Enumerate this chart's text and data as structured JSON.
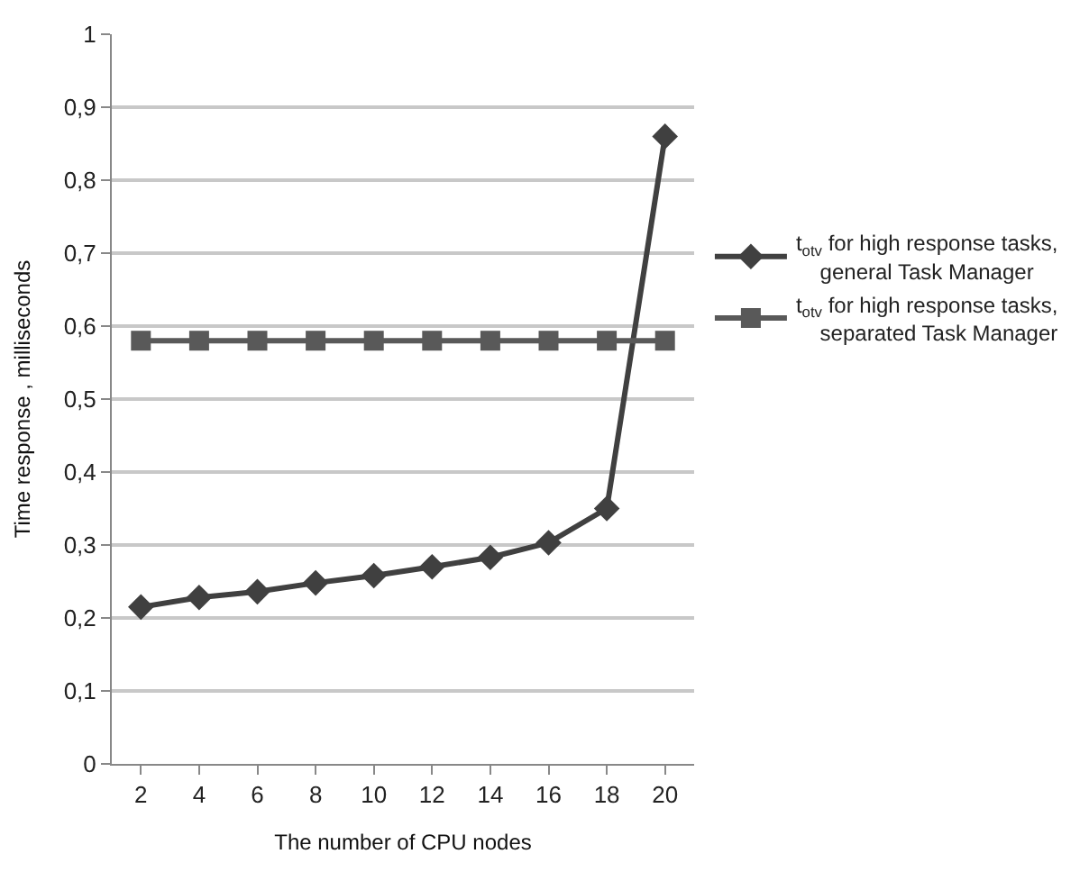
{
  "chart_data": {
    "type": "line",
    "xlabel": "The number of CPU nodes",
    "ylabel": "Time response , milliseconds",
    "categories": [
      "2",
      "4",
      "6",
      "8",
      "10",
      "12",
      "14",
      "16",
      "18",
      "20"
    ],
    "series": [
      {
        "name": "t$_{otv}$ for high response tasks, general Task Manager",
        "color": "#404040",
        "marker": "diamond",
        "values": [
          0.215,
          0.228,
          0.236,
          0.248,
          0.258,
          0.27,
          0.283,
          0.303,
          0.35,
          0.86
        ]
      },
      {
        "name": "t$_{otv}$ for high response tasks, separated Task Manager",
        "color": "#595959",
        "marker": "square",
        "values": [
          0.58,
          0.58,
          0.58,
          0.58,
          0.58,
          0.58,
          0.58,
          0.58,
          0.58,
          0.58
        ]
      }
    ],
    "ylim": [
      0,
      1
    ],
    "yticks": [
      0,
      {
        "value": 0.1,
        "label": "0,1"
      },
      {
        "value": 0.2,
        "label": "0,2"
      },
      {
        "value": 0.3,
        "label": "0,3"
      },
      {
        "value": 0.4,
        "label": "0,4"
      },
      {
        "value": 0.5,
        "label": "0,5"
      },
      {
        "value": 0.6,
        "label": "0,6"
      },
      {
        "value": 0.7,
        "label": "0,7"
      },
      {
        "value": 0.8,
        "label": "0,8"
      },
      {
        "value": 0.9,
        "label": "0,9"
      },
      1
    ],
    "grid": "y",
    "legend": "right",
    "line_style": "solid"
  }
}
